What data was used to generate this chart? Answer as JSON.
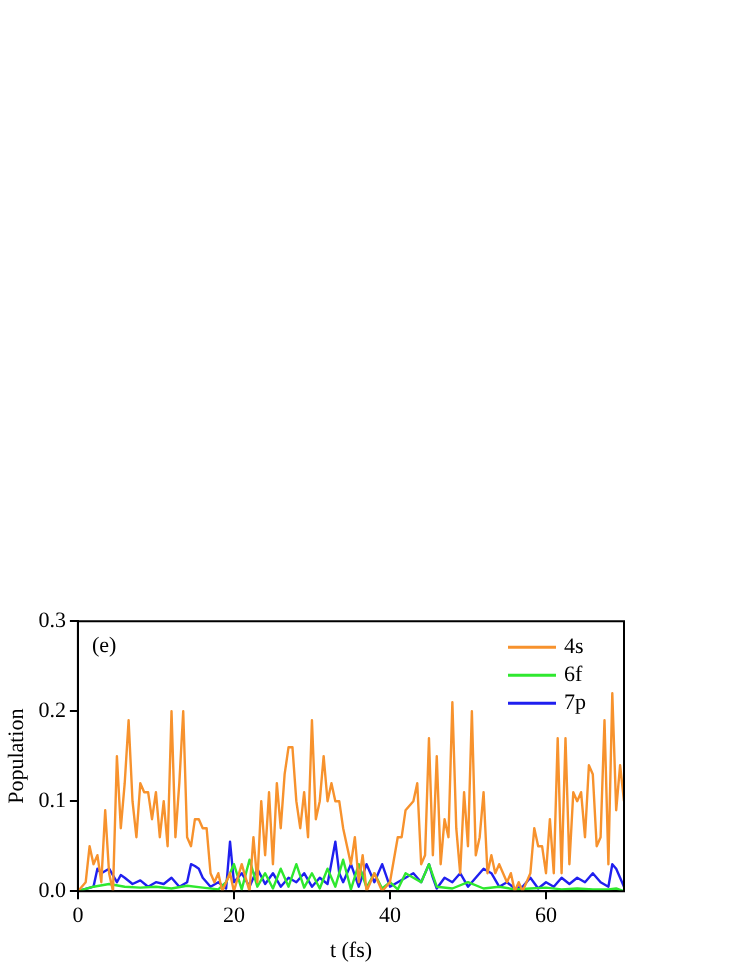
{
  "chart_data": {
    "type": "line",
    "xlabel": "t (fs)",
    "ylabel": "Population",
    "annotations": [
      "(e)"
    ],
    "xlim": [
      0,
      70
    ],
    "ylim": [
      0,
      0.3
    ],
    "xticks": [
      0,
      20,
      40,
      60
    ],
    "yticks": [
      {
        "value": 0,
        "label": "0.0"
      },
      0.1,
      0.2,
      0.3
    ],
    "grid": false,
    "legend": "top right",
    "marker": "none",
    "line_style": "solid",
    "series": [
      {
        "name": "4s",
        "color": "#f7922d",
        "x": [
          0,
          1,
          1.5,
          2,
          2.5,
          3,
          3.5,
          4,
          4.5,
          5,
          5.5,
          6,
          6.5,
          7,
          7.5,
          8,
          8.5,
          9,
          9.5,
          10,
          10.5,
          11,
          11.5,
          12,
          12.5,
          13,
          13.5,
          14,
          14.5,
          15,
          15.5,
          16,
          16.5,
          17,
          17.5,
          18,
          18.5,
          19,
          19.5,
          20,
          21,
          22,
          22.5,
          23,
          23.5,
          24,
          24.5,
          25,
          25.5,
          26,
          26.5,
          27,
          27.5,
          28,
          28.5,
          29,
          29.5,
          30,
          30.5,
          31,
          31.5,
          32,
          32.5,
          33,
          33.5,
          34,
          34.5,
          35,
          35.5,
          36,
          36.5,
          37,
          38,
          39,
          40,
          41,
          41.5,
          42,
          43,
          43.5,
          44,
          44.5,
          45,
          45.5,
          46,
          46.5,
          47,
          47.5,
          48,
          48.5,
          49,
          49.5,
          50,
          50.5,
          51,
          51.5,
          52,
          52.5,
          53,
          53.5,
          54,
          55,
          55.5,
          56,
          56.5,
          57,
          58,
          58.5,
          59,
          59.5,
          60,
          60.5,
          61,
          61.5,
          62,
          62.5,
          63,
          63.5,
          64,
          64.5,
          65,
          65.5,
          66,
          66.5,
          67,
          67.5,
          68,
          68.5,
          69,
          69.5,
          70
        ],
        "values": [
          0,
          0.01,
          0.05,
          0.03,
          0.04,
          0.01,
          0.09,
          0.02,
          0,
          0.15,
          0.07,
          0.12,
          0.19,
          0.1,
          0.06,
          0.12,
          0.11,
          0.11,
          0.08,
          0.11,
          0.06,
          0.1,
          0.05,
          0.2,
          0.06,
          0.12,
          0.2,
          0.06,
          0.05,
          0.08,
          0.08,
          0.07,
          0.07,
          0.02,
          0.01,
          0.02,
          0,
          0.01,
          0.02,
          0,
          0.03,
          0,
          0.06,
          0.01,
          0.1,
          0.04,
          0.11,
          0.03,
          0.12,
          0.07,
          0.13,
          0.16,
          0.16,
          0.1,
          0.07,
          0.11,
          0.06,
          0.19,
          0.08,
          0.1,
          0.15,
          0.1,
          0.12,
          0.1,
          0.1,
          0.07,
          0.05,
          0.03,
          0.06,
          0.01,
          0.04,
          0,
          0.02,
          0,
          0.01,
          0.06,
          0.06,
          0.09,
          0.1,
          0.12,
          0.03,
          0.04,
          0.17,
          0.04,
          0.15,
          0.03,
          0.08,
          0.06,
          0.21,
          0.07,
          0.02,
          0.11,
          0.05,
          0.2,
          0.04,
          0.06,
          0.11,
          0.02,
          0.04,
          0.02,
          0.03,
          0.01,
          0.02,
          0,
          0.01,
          0,
          0.02,
          0.07,
          0.05,
          0.05,
          0.02,
          0.08,
          0.02,
          0.17,
          0.02,
          0.17,
          0.03,
          0.11,
          0.1,
          0.11,
          0.06,
          0.14,
          0.13,
          0.05,
          0.06,
          0.19,
          0.03,
          0.22,
          0.09,
          0.14,
          0.1
        ]
      },
      {
        "name": "6f",
        "color": "#2fe82f",
        "x": [
          0,
          2,
          4,
          6,
          8,
          10,
          12,
          14,
          16,
          18,
          19,
          20,
          21,
          22,
          23,
          24,
          25,
          26,
          27,
          28,
          29,
          30,
          31,
          32,
          33,
          34,
          35,
          36,
          37,
          38,
          39,
          40,
          41,
          42,
          44,
          45,
          46,
          48,
          50,
          52,
          54,
          56,
          58,
          60,
          62,
          64,
          66,
          68,
          69,
          70
        ],
        "values": [
          0,
          0.005,
          0.008,
          0.005,
          0.004,
          0.005,
          0.003,
          0.006,
          0.004,
          0.002,
          0.01,
          0.03,
          0.002,
          0.035,
          0.005,
          0.02,
          0.003,
          0.025,
          0.005,
          0.03,
          0.004,
          0.02,
          0.003,
          0.025,
          0.005,
          0.035,
          0.002,
          0.03,
          0.004,
          0.02,
          0.003,
          0.01,
          0.002,
          0.02,
          0.01,
          0.03,
          0.005,
          0.003,
          0.01,
          0.003,
          0.005,
          0.002,
          0.003,
          0.004,
          0.002,
          0.003,
          0.002,
          0.002,
          0.003,
          0
        ]
      },
      {
        "name": "7p",
        "color": "#1f1fef",
        "x": [
          0,
          2,
          2.5,
          3,
          4,
          5,
          5.5,
          6,
          7,
          8,
          9,
          10,
          11,
          12,
          13,
          14,
          14.5,
          15,
          15.5,
          16,
          17,
          18,
          19,
          19.5,
          20,
          21,
          22,
          23,
          24,
          25,
          26,
          27,
          28,
          29,
          30,
          31,
          32,
          33,
          33.5,
          34,
          35,
          36,
          37,
          38,
          39,
          40,
          41,
          42,
          43,
          44,
          45,
          45.5,
          46,
          47,
          48,
          49,
          50,
          51,
          52,
          53,
          54,
          55,
          56,
          57,
          58,
          59,
          60,
          61,
          62,
          63,
          64,
          65,
          66,
          67,
          68,
          68.5,
          69,
          70
        ],
        "values": [
          0,
          0.005,
          0.025,
          0.02,
          0.025,
          0.01,
          0.018,
          0.015,
          0.008,
          0.012,
          0.005,
          0.01,
          0.008,
          0.015,
          0.005,
          0.01,
          0.03,
          0.028,
          0.025,
          0.015,
          0.005,
          0.01,
          0.003,
          0.055,
          0.01,
          0.02,
          0.005,
          0.025,
          0.008,
          0.02,
          0.005,
          0.015,
          0.01,
          0.02,
          0.005,
          0.015,
          0.008,
          0.055,
          0.02,
          0.01,
          0.03,
          0.005,
          0.03,
          0.01,
          0.03,
          0.005,
          0.01,
          0.015,
          0.02,
          0.01,
          0.03,
          0.015,
          0.003,
          0.015,
          0.01,
          0.02,
          0.005,
          0.015,
          0.025,
          0.02,
          0.005,
          0.01,
          0.003,
          0.005,
          0.015,
          0.003,
          0.01,
          0.005,
          0.015,
          0.008,
          0.015,
          0.01,
          0.02,
          0.01,
          0.005,
          0.03,
          0.025,
          0.005
        ]
      }
    ]
  }
}
